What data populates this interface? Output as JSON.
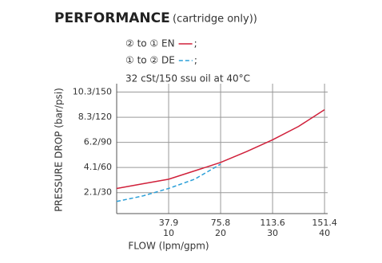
{
  "chart_data": {
    "type": "line",
    "title": "PERFORMANCE",
    "subtitle": "(cartridge only))",
    "annotation": "32 cSt/150 ssu oil at 40°C",
    "legend_separator": ";",
    "x_label": "FLOW (lpm/gpm)",
    "y_label": "PRESSURE DROP (bar/psi)",
    "x": [
      0,
      5,
      10,
      15,
      20,
      25,
      30,
      35,
      40
    ],
    "series": [
      {
        "name": "② to ① EN",
        "color": "#d0203a",
        "dash": false,
        "values": [
          35,
          40.5,
          46,
          56,
          66,
          79,
          93,
          109,
          129
        ]
      },
      {
        "name": "① to ② DE",
        "color": "#2a9fd8",
        "dash": true,
        "values": [
          19.5,
          26,
          35,
          46,
          64,
          null,
          null,
          null,
          null
        ]
      }
    ],
    "xlim": [
      0,
      40.6
    ],
    "xticks": [
      10,
      20,
      30,
      40
    ],
    "x2ticks": [
      {
        "value": 10,
        "label": "37.9"
      },
      {
        "value": 20,
        "label": "75.8"
      },
      {
        "value": 30,
        "label": "113.6"
      },
      {
        "value": 40,
        "label": "151.4"
      }
    ],
    "ylim": [
      5,
      160
    ],
    "yticks": [
      {
        "value": 30,
        "label": "2.1/30"
      },
      {
        "value": 60,
        "label": "4.1/60"
      },
      {
        "value": 90,
        "label": "6.2/90"
      },
      {
        "value": 120,
        "label": "8.3/120"
      },
      {
        "value": 150,
        "label": "10.3/150"
      }
    ],
    "grid": true
  }
}
